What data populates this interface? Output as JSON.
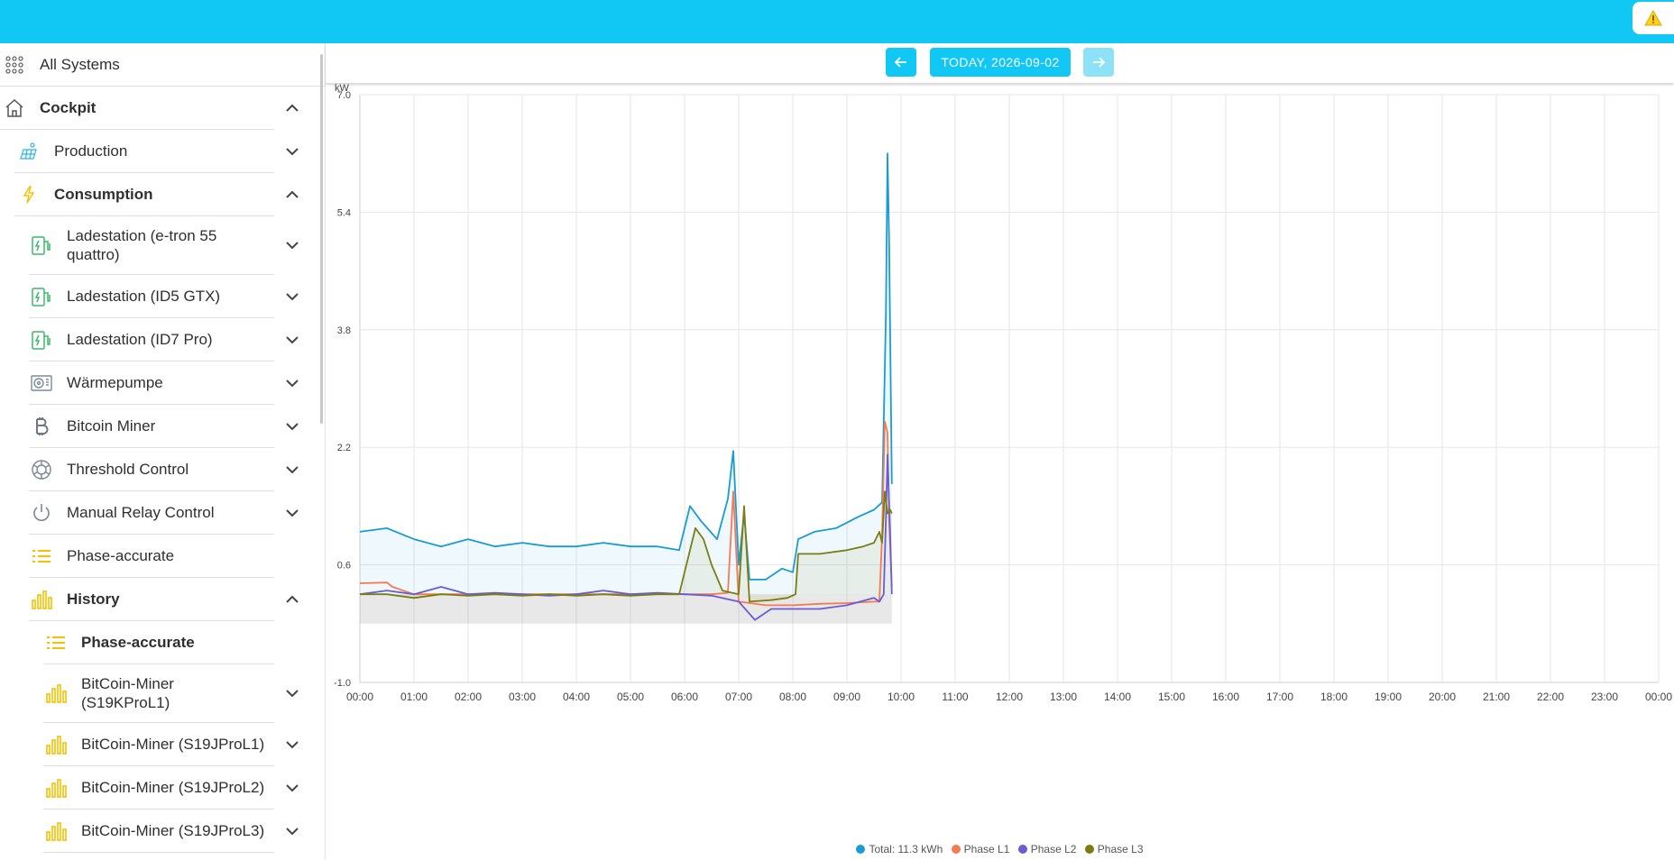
{
  "header": {
    "warning_icon": "warning-triangle-icon",
    "color": "#11c8f5"
  },
  "sidebar": {
    "all_systems": "All Systems",
    "cockpit": "Cockpit",
    "production": "Production",
    "consumption": "Consumption",
    "items": [
      {
        "label": "Ladestation (e-tron 55 quattro)",
        "icon": "charging-station-icon"
      },
      {
        "label": "Ladestation (ID5 GTX)",
        "icon": "charging-station-icon"
      },
      {
        "label": "Ladestation (ID7 Pro)",
        "icon": "charging-station-icon"
      },
      {
        "label": "Wärmepumpe",
        "icon": "heat-pump-icon"
      },
      {
        "label": "Bitcoin Miner",
        "icon": "bitcoin-icon"
      },
      {
        "label": "Threshold Control",
        "icon": "threshold-icon"
      },
      {
        "label": "Manual Relay Control",
        "icon": "power-icon"
      },
      {
        "label": "Phase-accurate",
        "icon": "list-icon"
      }
    ],
    "history": "History",
    "history_items": [
      {
        "label": "Phase-accurate",
        "icon": "list-icon"
      },
      {
        "label": "BitCoin-Miner (S19KProL1)",
        "icon": "bar-chart-icon"
      },
      {
        "label": "BitCoin-Miner (S19JProL1)",
        "icon": "bar-chart-icon"
      },
      {
        "label": "BitCoin-Miner (S19JProL2)",
        "icon": "bar-chart-icon"
      },
      {
        "label": "BitCoin-Miner (S19JProL3)",
        "icon": "bar-chart-icon"
      }
    ]
  },
  "date_nav": {
    "label": "TODAY, 2026-09-02",
    "prev_icon": "arrow-left-icon",
    "next_icon": "arrow-right-icon"
  },
  "chart_data": {
    "type": "line",
    "ylabel": "kW",
    "ylim": [
      -1.0,
      7.0
    ],
    "yticks": [
      "7.0",
      "5.4",
      "3.8",
      "2.2",
      "0.6",
      "-1.0"
    ],
    "xticks": [
      "00:00",
      "01:00",
      "02:00",
      "03:00",
      "04:00",
      "05:00",
      "06:00",
      "07:00",
      "08:00",
      "09:00",
      "10:00",
      "11:00",
      "12:00",
      "13:00",
      "14:00",
      "15:00",
      "16:00",
      "17:00",
      "18:00",
      "19:00",
      "20:00",
      "21:00",
      "22:00",
      "23:00",
      "00:00"
    ],
    "grid": true,
    "legend_position": "bottom",
    "series": [
      {
        "name": "Total: 11.3 kWh",
        "color": "#1a9bd6",
        "points": [
          [
            0.0,
            1.05
          ],
          [
            0.5,
            1.1
          ],
          [
            1.0,
            0.95
          ],
          [
            1.5,
            0.85
          ],
          [
            2.0,
            0.95
          ],
          [
            2.5,
            0.85
          ],
          [
            3.0,
            0.9
          ],
          [
            3.5,
            0.85
          ],
          [
            4.0,
            0.85
          ],
          [
            4.5,
            0.9
          ],
          [
            5.0,
            0.85
          ],
          [
            5.5,
            0.85
          ],
          [
            5.9,
            0.8
          ],
          [
            6.1,
            1.4
          ],
          [
            6.3,
            1.2
          ],
          [
            6.6,
            0.95
          ],
          [
            6.8,
            1.5
          ],
          [
            6.9,
            2.15
          ],
          [
            7.0,
            0.6
          ],
          [
            7.1,
            1.3
          ],
          [
            7.2,
            0.4
          ],
          [
            7.5,
            0.4
          ],
          [
            7.8,
            0.55
          ],
          [
            8.0,
            0.5
          ],
          [
            8.1,
            0.95
          ],
          [
            8.4,
            1.05
          ],
          [
            8.8,
            1.1
          ],
          [
            9.2,
            1.25
          ],
          [
            9.5,
            1.35
          ],
          [
            9.65,
            1.45
          ],
          [
            9.72,
            4.0
          ],
          [
            9.75,
            6.2
          ],
          [
            9.78,
            5.0
          ],
          [
            9.83,
            1.7
          ]
        ]
      },
      {
        "name": "Phase L1",
        "color": "#f47a52",
        "points": [
          [
            0.0,
            0.35
          ],
          [
            0.5,
            0.36
          ],
          [
            0.6,
            0.3
          ],
          [
            1.0,
            0.2
          ],
          [
            2.0,
            0.2
          ],
          [
            3.0,
            0.2
          ],
          [
            4.0,
            0.2
          ],
          [
            5.0,
            0.2
          ],
          [
            6.0,
            0.2
          ],
          [
            6.5,
            0.2
          ],
          [
            6.8,
            0.22
          ],
          [
            6.9,
            1.6
          ],
          [
            7.0,
            0.1
          ],
          [
            7.5,
            0.05
          ],
          [
            8.0,
            0.05
          ],
          [
            8.5,
            0.07
          ],
          [
            9.0,
            0.08
          ],
          [
            9.5,
            0.1
          ],
          [
            9.6,
            0.1
          ],
          [
            9.65,
            1.0
          ],
          [
            9.7,
            2.55
          ],
          [
            9.75,
            2.4
          ],
          [
            9.78,
            1.2
          ],
          [
            9.83,
            0.3
          ]
        ]
      },
      {
        "name": "Phase L2",
        "color": "#6a5bd6",
        "points": [
          [
            0.0,
            0.2
          ],
          [
            0.5,
            0.25
          ],
          [
            1.0,
            0.2
          ],
          [
            1.5,
            0.3
          ],
          [
            2.0,
            0.2
          ],
          [
            2.5,
            0.22
          ],
          [
            3.0,
            0.2
          ],
          [
            3.5,
            0.18
          ],
          [
            4.0,
            0.2
          ],
          [
            4.5,
            0.25
          ],
          [
            5.0,
            0.2
          ],
          [
            5.5,
            0.22
          ],
          [
            6.0,
            0.2
          ],
          [
            6.5,
            0.18
          ],
          [
            7.0,
            0.1
          ],
          [
            7.3,
            -0.15
          ],
          [
            7.6,
            0.0
          ],
          [
            8.0,
            0.0
          ],
          [
            8.5,
            0.0
          ],
          [
            9.0,
            0.05
          ],
          [
            9.5,
            0.15
          ],
          [
            9.6,
            0.1
          ],
          [
            9.68,
            0.2
          ],
          [
            9.72,
            1.2
          ],
          [
            9.75,
            2.1
          ],
          [
            9.8,
            1.0
          ],
          [
            9.83,
            0.2
          ]
        ]
      },
      {
        "name": "Phase L3",
        "color": "#7a7d12",
        "points": [
          [
            0.0,
            0.2
          ],
          [
            0.5,
            0.2
          ],
          [
            1.0,
            0.15
          ],
          [
            1.5,
            0.2
          ],
          [
            2.0,
            0.18
          ],
          [
            2.5,
            0.2
          ],
          [
            3.0,
            0.18
          ],
          [
            3.5,
            0.2
          ],
          [
            4.0,
            0.18
          ],
          [
            4.5,
            0.2
          ],
          [
            5.0,
            0.18
          ],
          [
            5.5,
            0.2
          ],
          [
            5.9,
            0.2
          ],
          [
            6.0,
            0.5
          ],
          [
            6.2,
            1.1
          ],
          [
            6.35,
            0.95
          ],
          [
            6.5,
            0.6
          ],
          [
            6.7,
            0.25
          ],
          [
            7.0,
            0.2
          ],
          [
            7.1,
            1.4
          ],
          [
            7.2,
            0.1
          ],
          [
            7.6,
            0.12
          ],
          [
            7.9,
            0.15
          ],
          [
            8.05,
            0.2
          ],
          [
            8.1,
            0.75
          ],
          [
            8.5,
            0.75
          ],
          [
            9.0,
            0.8
          ],
          [
            9.3,
            0.85
          ],
          [
            9.5,
            0.9
          ],
          [
            9.6,
            1.05
          ],
          [
            9.65,
            0.9
          ],
          [
            9.7,
            1.6
          ],
          [
            9.75,
            1.3
          ],
          [
            9.8,
            1.35
          ],
          [
            9.83,
            1.3
          ]
        ]
      }
    ]
  }
}
